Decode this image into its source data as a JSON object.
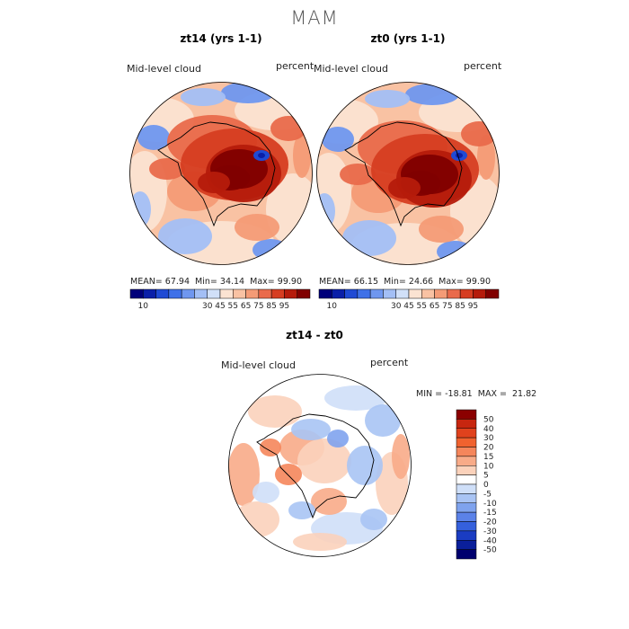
{
  "figure": {
    "title": "MAM"
  },
  "panels": [
    {
      "title": "zt14 (yrs 1-1)",
      "left_label": "Mid-level cloud",
      "right_label": "percent",
      "stats": {
        "mean_label": "MEAN=",
        "mean": "67.94",
        "min_label": "Min=",
        "min": "34.14",
        "max_label": "Max=",
        "max": "99.90"
      }
    },
    {
      "title": "zt0 (yrs 1-1)",
      "left_label": "Mid-level cloud",
      "right_label": "percent",
      "stats": {
        "mean_label": "MEAN=",
        "mean": "66.15",
        "min_label": "Min=",
        "min": "24.66",
        "max_label": "Max=",
        "max": "99.90"
      }
    },
    {
      "title": "zt14 - zt0",
      "left_label": "Mid-level cloud",
      "right_label": "percent",
      "stats_line": "MIN = -18.81  MAX =  21.82"
    }
  ],
  "colorbar_abs": {
    "colors": [
      "#00007a",
      "#0a1fa8",
      "#1f4ad4",
      "#3f71e8",
      "#6f97ef",
      "#a3bff5",
      "#d1e0f8",
      "#fbe3d2",
      "#f9c2a3",
      "#f49b76",
      "#e96a4b",
      "#d63d21",
      "#b51b0b",
      "#800000"
    ],
    "tick_labels": [
      "10",
      "30",
      "45",
      "55",
      "65",
      "75",
      "85",
      "95"
    ]
  },
  "colorbar_diff": {
    "levels": [
      "50",
      "40",
      "30",
      "20",
      "15",
      "10",
      "5",
      "0",
      "-5",
      "-10",
      "-15",
      "-20",
      "-30",
      "-40",
      "-50"
    ],
    "colors": [
      "#8b0000",
      "#c7260f",
      "#e0421d",
      "#f0622f",
      "#f5865b",
      "#f8ab88",
      "#fbd2bb",
      "#ffffff",
      "#cfdff8",
      "#a9c4f4",
      "#7fa3ee",
      "#5b82e8",
      "#3560dc",
      "#1a3cc2",
      "#0a1f9a",
      "#00006e"
    ]
  },
  "chart_data": [
    {
      "type": "heatmap",
      "title": "zt14 (yrs 1-1)",
      "variable": "Mid-level cloud",
      "units": "percent",
      "projection": "south polar stereographic",
      "mean": 67.94,
      "min": 34.14,
      "max": 99.9,
      "levels": [
        10,
        30,
        45,
        55,
        65,
        75,
        85,
        95
      ]
    },
    {
      "type": "heatmap",
      "title": "zt0 (yrs 1-1)",
      "variable": "Mid-level cloud",
      "units": "percent",
      "projection": "south polar stereographic",
      "mean": 66.15,
      "min": 24.66,
      "max": 99.9,
      "levels": [
        10,
        30,
        45,
        55,
        65,
        75,
        85,
        95
      ]
    },
    {
      "type": "heatmap",
      "title": "zt14 - zt0",
      "variable": "Mid-level cloud",
      "units": "percent",
      "projection": "south polar stereographic",
      "min": -18.81,
      "max": 21.82,
      "levels": [
        -50,
        -40,
        -30,
        -20,
        -15,
        -10,
        -5,
        0,
        5,
        10,
        15,
        20,
        30,
        40,
        50
      ]
    }
  ]
}
